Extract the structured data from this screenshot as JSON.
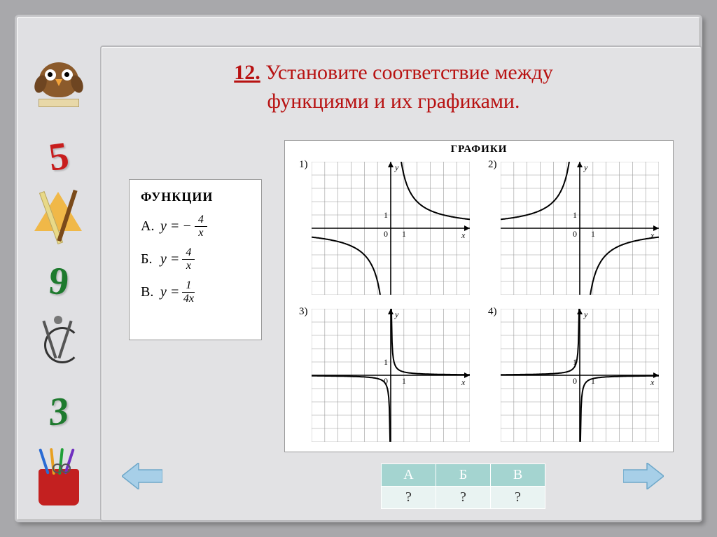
{
  "title": {
    "number": "12.",
    "text_line1": "Установите соответствие между",
    "text_line2": "функциями и их графиками."
  },
  "functions": {
    "heading": "ФУНКЦИИ",
    "items": [
      {
        "label": "А.",
        "lhs": "y =",
        "prefix": "−",
        "num": "4",
        "den": "x"
      },
      {
        "label": "Б.",
        "lhs": "y =",
        "prefix": "",
        "num": "4",
        "den": "x"
      },
      {
        "label": "В.",
        "lhs": "y =",
        "prefix": "",
        "num": "1",
        "den": "4x"
      }
    ]
  },
  "graphs": {
    "heading": "ГРАФИКИ",
    "cells": [
      {
        "n": "1)",
        "type": "hyperbola",
        "k": 4,
        "axis_label_y": "y",
        "axis_label_x": "x",
        "one_label": "1",
        "zero_label": "0"
      },
      {
        "n": "2)",
        "type": "hyperbola",
        "k": -4,
        "axis_label_y": "y",
        "axis_label_x": "x",
        "one_label": "1",
        "zero_label": "0"
      },
      {
        "n": "3)",
        "type": "hyperbola",
        "k": 0.25,
        "axis_label_y": "y",
        "axis_label_x": "x",
        "one_label": "1",
        "zero_label": "0"
      },
      {
        "n": "4)",
        "type": "hyperbola",
        "k": -0.25,
        "axis_label_y": "y",
        "axis_label_x": "x",
        "one_label": "1",
        "zero_label": "0"
      }
    ],
    "grid": {
      "xlim": [
        -6,
        6
      ],
      "ylim": [
        -5,
        5
      ],
      "step": 1,
      "grid_color": "#9a9a9a",
      "axis_color": "#000000",
      "curve_color": "#000000",
      "curve_width": 2,
      "bg": "#ffffff",
      "label_fontsize": 12
    }
  },
  "answer_table": {
    "headers": [
      "А",
      "Б",
      "В"
    ],
    "values": [
      "?",
      "?",
      "?"
    ]
  },
  "sidebar": {
    "digits": {
      "d5": "5",
      "d9": "9",
      "d3": "3"
    }
  },
  "nav": {
    "arrow_fill": "#a7cfe8",
    "arrow_stroke": "#6fa8c9"
  }
}
